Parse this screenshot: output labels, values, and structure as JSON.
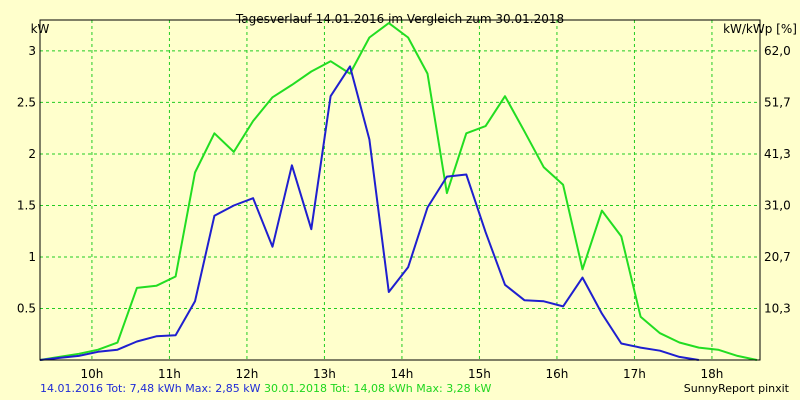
{
  "chart_data": {
    "type": "line",
    "title": "Tagesverlauf 14.01.2016 im Vergleich zum 30.01.2018",
    "ylabel_left": "kW",
    "ylabel_right": "kW/kWp [%]",
    "x_ticks": [
      {
        "x": 10,
        "label": "10h"
      },
      {
        "x": 11,
        "label": "11h"
      },
      {
        "x": 12,
        "label": "12h"
      },
      {
        "x": 13,
        "label": "13h"
      },
      {
        "x": 14,
        "label": "14h"
      },
      {
        "x": 15,
        "label": "15h"
      },
      {
        "x": 16,
        "label": "16h"
      },
      {
        "x": 17,
        "label": "17h"
      },
      {
        "x": 18,
        "label": "18h"
      }
    ],
    "xlim": [
      9.33,
      18.62
    ],
    "ylim": [
      0,
      3.3
    ],
    "y_ticks_left": [
      {
        "y": 0.5,
        "label": "0.5"
      },
      {
        "y": 1,
        "label": "1"
      },
      {
        "y": 1.5,
        "label": "1.5"
      },
      {
        "y": 2,
        "label": "2"
      },
      {
        "y": 2.5,
        "label": "2.5"
      },
      {
        "y": 3,
        "label": "3"
      }
    ],
    "y_ticks_right": [
      {
        "y": 0.5,
        "label": "10,3"
      },
      {
        "y": 1,
        "label": "20,7"
      },
      {
        "y": 1.5,
        "label": "31,0"
      },
      {
        "y": 2,
        "label": "41,3"
      },
      {
        "y": 2.5,
        "label": "51,7"
      },
      {
        "y": 3,
        "label": "62,0"
      }
    ],
    "grid": true,
    "series": [
      {
        "name": "30.01.2018",
        "color": "#22dd22",
        "x": [
          9.33,
          9.58,
          9.83,
          10.08,
          10.33,
          10.58,
          10.83,
          11.08,
          11.33,
          11.58,
          11.83,
          12.08,
          12.33,
          12.58,
          12.83,
          13.08,
          13.33,
          13.58,
          13.83,
          14.08,
          14.33,
          14.58,
          14.83,
          15.08,
          15.33,
          15.58,
          15.83,
          16.08,
          16.33,
          16.58,
          16.83,
          17.08,
          17.33,
          17.58,
          17.83,
          18.08,
          18.33,
          18.58
        ],
        "y": [
          0.0,
          0.03,
          0.06,
          0.1,
          0.17,
          0.7,
          0.72,
          0.81,
          1.82,
          2.2,
          2.02,
          2.32,
          2.55,
          2.67,
          2.8,
          2.9,
          2.78,
          3.13,
          3.27,
          3.13,
          2.78,
          1.62,
          2.2,
          2.27,
          2.56,
          2.22,
          1.87,
          1.7,
          0.88,
          1.45,
          1.2,
          0.42,
          0.26,
          0.17,
          0.12,
          0.1,
          0.04,
          0.0
        ]
      },
      {
        "name": "14.01.2016",
        "color": "#1f1fcf",
        "x": [
          9.33,
          9.58,
          9.83,
          10.08,
          10.33,
          10.58,
          10.83,
          11.08,
          11.33,
          11.58,
          11.83,
          12.08,
          12.33,
          12.58,
          12.83,
          13.08,
          13.33,
          13.58,
          13.83,
          14.08,
          14.33,
          14.58,
          14.83,
          15.08,
          15.33,
          15.58,
          15.83,
          16.08,
          16.33,
          16.58,
          16.83,
          17.08,
          17.33,
          17.58,
          17.83
        ],
        "y": [
          0.0,
          0.02,
          0.04,
          0.08,
          0.1,
          0.18,
          0.23,
          0.24,
          0.57,
          1.4,
          1.5,
          1.57,
          1.1,
          1.89,
          1.27,
          2.56,
          2.85,
          2.14,
          0.66,
          0.9,
          1.48,
          1.78,
          1.8,
          1.24,
          0.73,
          0.58,
          0.57,
          0.52,
          0.8,
          0.45,
          0.16,
          0.12,
          0.09,
          0.03,
          0.0
        ]
      }
    ]
  },
  "footer": {
    "series1_text": "14.01.2016 Tot: 7,48 kWh Max: 2,85 kW",
    "series2_text": "30.01.2018 Tot: 14,08 kWh Max: 3,28 kW",
    "credit": "SunnyReport pinxit"
  },
  "colors": {
    "background": "#ffffcc",
    "grid": "#22cc22",
    "axis": "#000000"
  }
}
